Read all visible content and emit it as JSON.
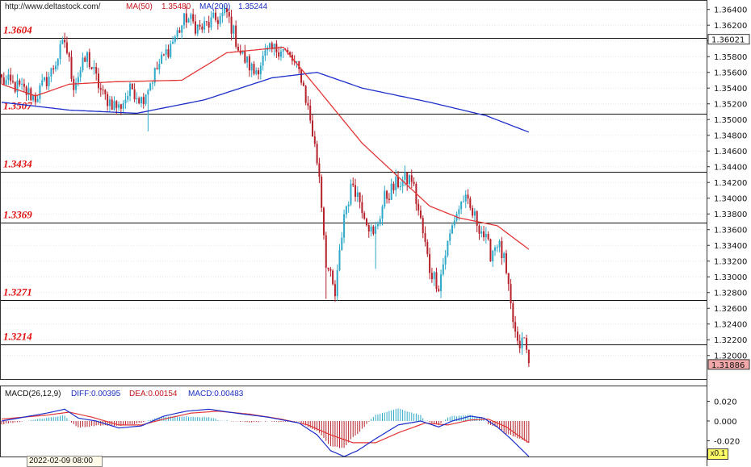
{
  "header": {
    "url": "http://www.deltastock.com/",
    "ma50_label": "MA(50)",
    "ma50_value": "1.35480",
    "ma200_label": "MA(200)",
    "ma200_value": "1.35244"
  },
  "macd_header": {
    "label": "MACD(26,12,9)",
    "diff": "DIFF:0.00395",
    "dea": "DEA:0.00154",
    "macd": "MACD:0.00483"
  },
  "footer": {
    "datetime": "2022-02-09 08:00",
    "zoom": "x0.1"
  },
  "colors": {
    "up": "#2ea9c9",
    "down": "#b5202a",
    "ma50": "#e23636",
    "ma200": "#1c2ec9",
    "level_text": "#e01010",
    "price_tag": "#f2a8a8"
  },
  "chart_data": [
    {
      "type": "candlestick",
      "ylim": [
        1.317,
        1.3652
      ],
      "y_ticks": [
        "1.36400",
        "1.36200",
        "1.36000",
        "1.35800",
        "1.35600",
        "1.35400",
        "1.35200",
        "1.35000",
        "1.34800",
        "1.34600",
        "1.34400",
        "1.34200",
        "1.34000",
        "1.33800",
        "1.33600",
        "1.33400",
        "1.33200",
        "1.33000",
        "1.32800",
        "1.32600",
        "1.32400",
        "1.32200",
        "1.32000"
      ],
      "levels": [
        {
          "value": 1.3604,
          "label": "1.3604"
        },
        {
          "value": 1.3507,
          "label": "1.3507"
        },
        {
          "value": 1.3434,
          "label": "1.3434"
        },
        {
          "value": 1.3369,
          "label": "1.3369"
        },
        {
          "value": 1.3271,
          "label": "1.3271"
        },
        {
          "value": 1.3214,
          "label": "1.3214"
        }
      ],
      "price_tags": [
        {
          "value": 1.36021,
          "label": "1.36021"
        },
        {
          "value": 1.31886,
          "label": "1.31886"
        }
      ],
      "close_anchors": [
        [
          0,
          1.355
        ],
        [
          8,
          1.354
        ],
        [
          15,
          1.3528
        ],
        [
          22,
          1.356
        ],
        [
          28,
          1.36
        ],
        [
          32,
          1.3545
        ],
        [
          38,
          1.358
        ],
        [
          45,
          1.353
        ],
        [
          52,
          1.3515
        ],
        [
          58,
          1.354
        ],
        [
          62,
          1.3525
        ],
        [
          70,
          1.357
        ],
        [
          76,
          1.36
        ],
        [
          82,
          1.363
        ],
        [
          88,
          1.3615
        ],
        [
          94,
          1.3625
        ],
        [
          100,
          1.3635
        ],
        [
          106,
          1.3585
        ],
        [
          112,
          1.356
        ],
        [
          118,
          1.3585
        ],
        [
          124,
          1.3592
        ],
        [
          129,
          1.3575
        ],
        [
          133,
          1.3555
        ],
        [
          137,
          1.35
        ],
        [
          141,
          1.343
        ],
        [
          144,
          1.332
        ],
        [
          148,
          1.3275
        ],
        [
          152,
          1.338
        ],
        [
          156,
          1.342
        ],
        [
          160,
          1.339
        ],
        [
          165,
          1.335
        ],
        [
          170,
          1.34
        ],
        [
          176,
          1.342
        ],
        [
          182,
          1.3425
        ],
        [
          186,
          1.337
        ],
        [
          190,
          1.331
        ],
        [
          194,
          1.329
        ],
        [
          197,
          1.333
        ],
        [
          201,
          1.3375
        ],
        [
          205,
          1.34
        ],
        [
          209,
          1.338
        ],
        [
          213,
          1.336
        ],
        [
          217,
          1.333
        ],
        [
          220,
          1.3345
        ],
        [
          223,
          1.332
        ],
        [
          226,
          1.326
        ],
        [
          229,
          1.321
        ],
        [
          232,
          1.322
        ],
        [
          234,
          1.3189
        ]
      ],
      "ma50": [
        [
          0,
          1.3545
        ],
        [
          15,
          1.353
        ],
        [
          30,
          1.3545
        ],
        [
          50,
          1.3548
        ],
        [
          80,
          1.355
        ],
        [
          100,
          1.3585
        ],
        [
          125,
          1.3592
        ],
        [
          140,
          1.354
        ],
        [
          160,
          1.347
        ],
        [
          175,
          1.343
        ],
        [
          190,
          1.339
        ],
        [
          203,
          1.3375
        ],
        [
          220,
          1.3365
        ],
        [
          234,
          1.3335
        ]
      ],
      "ma200": [
        [
          0,
          1.3522
        ],
        [
          30,
          1.3512
        ],
        [
          60,
          1.3508
        ],
        [
          90,
          1.3525
        ],
        [
          120,
          1.3553
        ],
        [
          140,
          1.356
        ],
        [
          160,
          1.354
        ],
        [
          190,
          1.3522
        ],
        [
          215,
          1.3505
        ],
        [
          234,
          1.3484
        ]
      ],
      "highlights": [
        {
          "i": 144,
          "low": 1.3272
        },
        {
          "i": 195,
          "low": 1.3273
        },
        {
          "i": 166,
          "low": 1.331
        },
        {
          "i": 65,
          "low": 1.3485
        }
      ]
    },
    {
      "type": "macd",
      "ylim": [
        -0.036,
        0.036
      ],
      "y_ticks": [
        "0.020",
        "0.000",
        "-0.020"
      ],
      "diff": [
        [
          0,
          0.0
        ],
        [
          20,
          0.008
        ],
        [
          28,
          0.012
        ],
        [
          34,
          0.003
        ],
        [
          42,
          0.0
        ],
        [
          52,
          -0.007
        ],
        [
          62,
          -0.005
        ],
        [
          72,
          0.005
        ],
        [
          82,
          0.01
        ],
        [
          92,
          0.012
        ],
        [
          104,
          0.008
        ],
        [
          118,
          0.004
        ],
        [
          132,
          -0.002
        ],
        [
          140,
          -0.014
        ],
        [
          146,
          -0.03
        ],
        [
          152,
          -0.036
        ],
        [
          158,
          -0.03
        ],
        [
          166,
          -0.018
        ],
        [
          176,
          -0.004
        ],
        [
          186,
          0.0
        ],
        [
          194,
          -0.006
        ],
        [
          200,
          0.0
        ],
        [
          208,
          0.005
        ],
        [
          214,
          0.003
        ],
        [
          220,
          -0.006
        ],
        [
          226,
          -0.018
        ],
        [
          234,
          -0.036
        ]
      ],
      "dea": [
        [
          0,
          0.002
        ],
        [
          20,
          0.006
        ],
        [
          30,
          0.009
        ],
        [
          40,
          0.004
        ],
        [
          52,
          -0.004
        ],
        [
          62,
          -0.004
        ],
        [
          72,
          0.002
        ],
        [
          84,
          0.008
        ],
        [
          96,
          0.01
        ],
        [
          110,
          0.007
        ],
        [
          124,
          0.002
        ],
        [
          136,
          -0.004
        ],
        [
          146,
          -0.014
        ],
        [
          156,
          -0.022
        ],
        [
          166,
          -0.022
        ],
        [
          176,
          -0.012
        ],
        [
          188,
          -0.002
        ],
        [
          198,
          -0.004
        ],
        [
          208,
          0.001
        ],
        [
          216,
          0.002
        ],
        [
          224,
          -0.006
        ],
        [
          234,
          -0.022
        ]
      ]
    }
  ]
}
